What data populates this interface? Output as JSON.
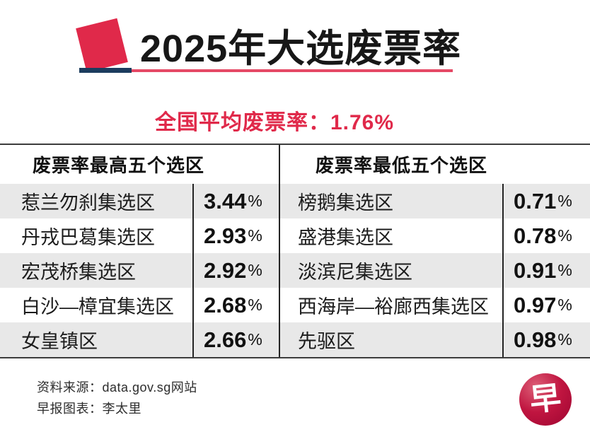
{
  "title": "2025年大选废票率",
  "subtitle": {
    "label": "全国平均废票率：",
    "value": "1.76%"
  },
  "table": {
    "unit": "%",
    "left": {
      "header": "废票率最高五个选区",
      "rows": [
        {
          "name": "惹兰勿刹集选区",
          "value": "3.44"
        },
        {
          "name": "丹戎巴葛集选区",
          "value": "2.93"
        },
        {
          "name": "宏茂桥集选区",
          "value": "2.92"
        },
        {
          "name": "白沙—樟宜集选区",
          "value": "2.68"
        },
        {
          "name": "女皇镇区",
          "value": "2.66"
        }
      ]
    },
    "right": {
      "header": "废票率最低五个选区",
      "rows": [
        {
          "name": "榜鹅集选区",
          "value": "0.71"
        },
        {
          "name": "盛港集选区",
          "value": "0.78"
        },
        {
          "name": "淡滨尼集选区",
          "value": "0.91"
        },
        {
          "name": "西海岸—裕廊西集选区",
          "value": "0.97"
        },
        {
          "name": "先驱区",
          "value": "0.98"
        }
      ]
    }
  },
  "footer": {
    "source": "资料来源：data.gov.sg网站",
    "credit": "早报图表：李太里"
  },
  "logo": {
    "char": "早"
  },
  "colors": {
    "accent": "#e0294a",
    "navy": "#1c3c5e",
    "logo": "#c01540",
    "row-alt": "#e8e8e8"
  },
  "chart_data": {
    "type": "table",
    "title": "2025年大选废票率",
    "national_average_label": "全国平均废票率",
    "national_average_pct": 1.76,
    "tables": [
      {
        "title": "废票率最高五个选区",
        "columns": [
          "选区",
          "废票率%"
        ],
        "rows": [
          [
            "惹兰勿刹集选区",
            3.44
          ],
          [
            "丹戎巴葛集选区",
            2.93
          ],
          [
            "宏茂桥集选区",
            2.92
          ],
          [
            "白沙—樟宜集选区",
            2.68
          ],
          [
            "女皇镇区",
            2.66
          ]
        ]
      },
      {
        "title": "废票率最低五个选区",
        "columns": [
          "选区",
          "废票率%"
        ],
        "rows": [
          [
            "榜鹅集选区",
            0.71
          ],
          [
            "盛港集选区",
            0.78
          ],
          [
            "淡滨尼集选区",
            0.91
          ],
          [
            "西海岸—裕廊西集选区",
            0.97
          ],
          [
            "先驱区",
            0.98
          ]
        ]
      }
    ],
    "source": "data.gov.sg",
    "credit": "早报图表：李太里"
  }
}
